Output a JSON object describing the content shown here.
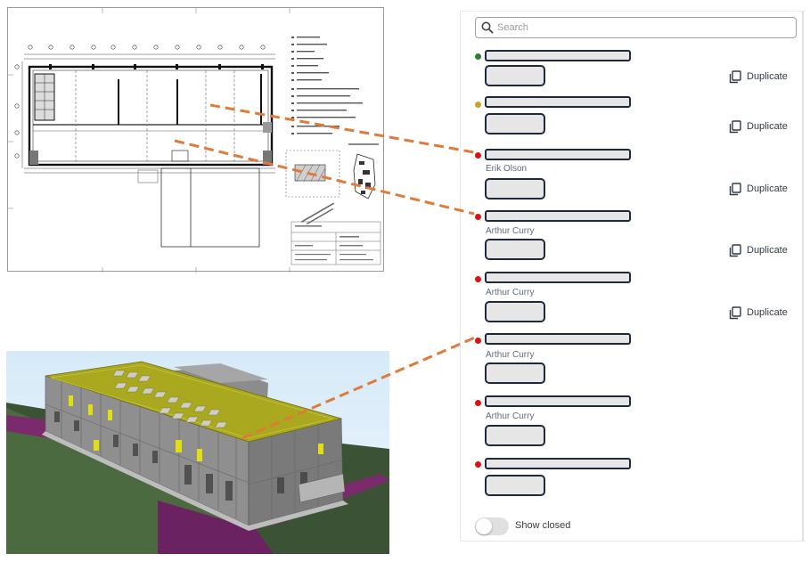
{
  "search": {
    "placeholder": "Search",
    "value": ""
  },
  "issues": [
    {
      "status_color": "#2e7d32",
      "assignee": "",
      "duplicate_label": "Duplicate"
    },
    {
      "status_color": "#c9a227",
      "assignee": "",
      "duplicate_label": "Duplicate"
    },
    {
      "status_color": "#e01010",
      "assignee": "Erik Olson",
      "duplicate_label": "Duplicate"
    },
    {
      "status_color": "#e01010",
      "assignee": "Arthur Curry",
      "duplicate_label": "Duplicate"
    },
    {
      "status_color": "#e01010",
      "assignee": "Arthur Curry",
      "duplicate_label": "Duplicate"
    },
    {
      "status_color": "#e01010",
      "assignee": "Arthur Curry",
      "duplicate_label": ""
    },
    {
      "status_color": "#e01010",
      "assignee": "Arthur Curry",
      "duplicate_label": ""
    },
    {
      "status_color": "#e01010",
      "assignee": "",
      "duplicate_label": ""
    }
  ],
  "toggle": {
    "label": "Show closed",
    "checked": false
  },
  "colors": {
    "connector": "#e07a3a",
    "roof": "#a9a81e",
    "ground_path": "#7c2a6e",
    "facade": "#8a8a8a"
  },
  "icons": {
    "search": "search-icon",
    "duplicate": "duplicate-icon"
  }
}
